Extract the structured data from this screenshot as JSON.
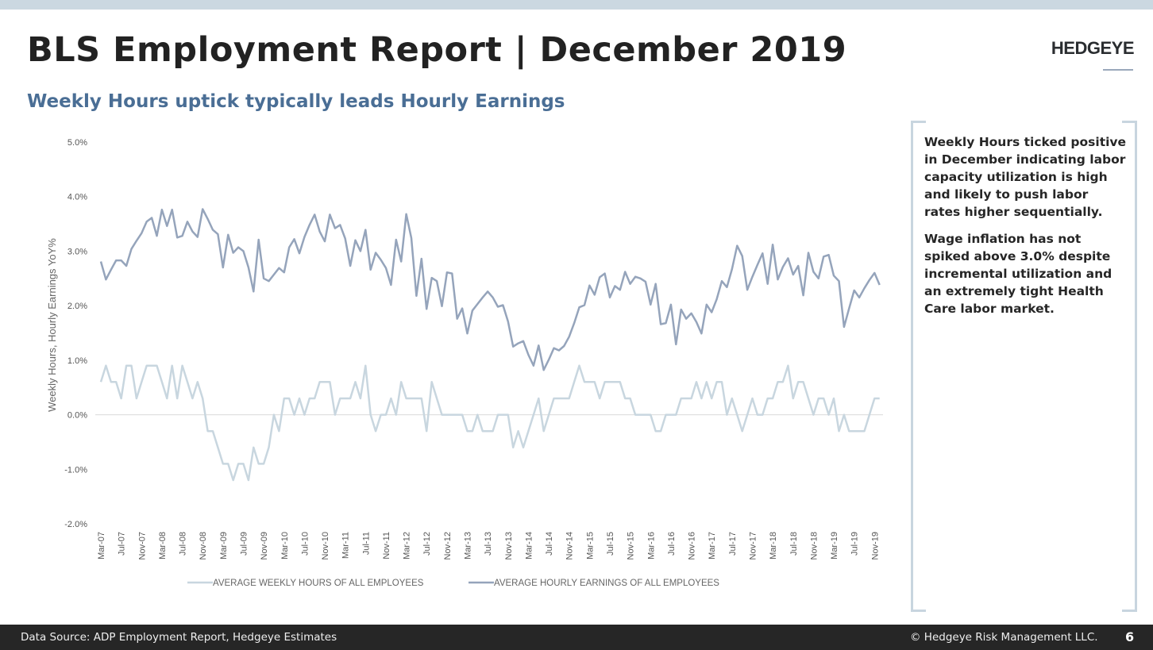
{
  "header": {
    "title": "BLS Employment Report | December 2019",
    "logo": "HEDGEYE",
    "subtitle": "Weekly Hours uptick typically leads Hourly Earnings"
  },
  "callout": {
    "paragraphs": [
      "Weekly Hours ticked positive in December indicating labor capacity utilization is high and likely to push labor rates higher sequentially.",
      "Wage inflation has not spiked above 3.0% despite incremental utilization and an extremely tight Health Care labor market."
    ]
  },
  "footer": {
    "source": "Data Source: ADP Employment Report, Hedgeye Estimates",
    "copyright": "© Hedgeye Risk Management LLC.",
    "page_number": "6"
  },
  "colors": {
    "hours": "#c8d6df",
    "earnings": "#95a4bb",
    "subtitle": "#4a6e95",
    "footer_bg": "#262626"
  },
  "chart_data": {
    "type": "line",
    "title": "",
    "xlabel": "",
    "ylabel": "Weekly Hours, Hourly Earnings YoY%",
    "ylim": [
      -2.0,
      5.0
    ],
    "y_ticks": [
      "5.0%",
      "4.0%",
      "3.0%",
      "2.0%",
      "1.0%",
      "0.0%",
      "-1.0%",
      "-2.0%"
    ],
    "x_ticks": [
      "Mar-07",
      "Jul-07",
      "Nov-07",
      "Mar-08",
      "Jul-08",
      "Nov-08",
      "Mar-09",
      "Jul-09",
      "Nov-09",
      "Mar-10",
      "Jul-10",
      "Nov-10",
      "Mar-11",
      "Jul-11",
      "Nov-11",
      "Mar-12",
      "Jul-12",
      "Nov-12",
      "Mar-13",
      "Jul-13",
      "Nov-13",
      "Mar-14",
      "Jul-14",
      "Nov-14",
      "Mar-15",
      "Jul-15",
      "Nov-15",
      "Mar-16",
      "Jul-16",
      "Nov-16",
      "Mar-17",
      "Jul-17",
      "Nov-17",
      "Mar-18",
      "Jul-18",
      "Nov-18",
      "Mar-19",
      "Jul-19",
      "Nov-19"
    ],
    "grid": false,
    "zero_line": true,
    "legend_position": "bottom",
    "x": [
      "Mar-07",
      "Apr-07",
      "May-07",
      "Jun-07",
      "Jul-07",
      "Aug-07",
      "Sep-07",
      "Oct-07",
      "Nov-07",
      "Dec-07",
      "Jan-08",
      "Feb-08",
      "Mar-08",
      "Apr-08",
      "May-08",
      "Jun-08",
      "Jul-08",
      "Aug-08",
      "Sep-08",
      "Oct-08",
      "Nov-08",
      "Dec-08",
      "Jan-09",
      "Feb-09",
      "Mar-09",
      "Apr-09",
      "May-09",
      "Jun-09",
      "Jul-09",
      "Aug-09",
      "Sep-09",
      "Oct-09",
      "Nov-09",
      "Dec-09",
      "Jan-10",
      "Feb-10",
      "Mar-10",
      "Apr-10",
      "May-10",
      "Jun-10",
      "Jul-10",
      "Aug-10",
      "Sep-10",
      "Oct-10",
      "Nov-10",
      "Dec-10",
      "Jan-11",
      "Feb-11",
      "Mar-11",
      "Apr-11",
      "May-11",
      "Jun-11",
      "Jul-11",
      "Aug-11",
      "Sep-11",
      "Oct-11",
      "Nov-11",
      "Dec-11",
      "Jan-12",
      "Feb-12",
      "Mar-12",
      "Apr-12",
      "May-12",
      "Jun-12",
      "Jul-12",
      "Aug-12",
      "Sep-12",
      "Oct-12",
      "Nov-12",
      "Dec-12",
      "Jan-13",
      "Feb-13",
      "Mar-13",
      "Apr-13",
      "May-13",
      "Jun-13",
      "Jul-13",
      "Aug-13",
      "Sep-13",
      "Oct-13",
      "Nov-13",
      "Dec-13",
      "Jan-14",
      "Feb-14",
      "Mar-14",
      "Apr-14",
      "May-14",
      "Jun-14",
      "Jul-14",
      "Aug-14",
      "Sep-14",
      "Oct-14",
      "Nov-14",
      "Dec-14",
      "Jan-15",
      "Feb-15",
      "Mar-15",
      "Apr-15",
      "May-15",
      "Jun-15",
      "Jul-15",
      "Aug-15",
      "Sep-15",
      "Oct-15",
      "Nov-15",
      "Dec-15",
      "Jan-16",
      "Feb-16",
      "Mar-16",
      "Apr-16",
      "May-16",
      "Jun-16",
      "Jul-16",
      "Aug-16",
      "Sep-16",
      "Oct-16",
      "Nov-16",
      "Dec-16",
      "Jan-17",
      "Feb-17",
      "Mar-17",
      "Apr-17",
      "May-17",
      "Jun-17",
      "Jul-17",
      "Aug-17",
      "Sep-17",
      "Oct-17",
      "Nov-17",
      "Dec-17",
      "Jan-18",
      "Feb-18",
      "Mar-18",
      "Apr-18",
      "May-18",
      "Jun-18",
      "Jul-18",
      "Aug-18",
      "Sep-18",
      "Oct-18",
      "Nov-18",
      "Dec-18",
      "Jan-19",
      "Feb-19",
      "Mar-19",
      "Apr-19",
      "May-19",
      "Jun-19",
      "Jul-19",
      "Aug-19",
      "Sep-19",
      "Oct-19",
      "Nov-19",
      "Dec-19"
    ],
    "series": [
      {
        "name": "AVERAGE WEEKLY HOURS OF ALL EMPLOYEES",
        "color": "#c8d6df",
        "values": [
          0.6,
          0.9,
          0.6,
          0.6,
          0.3,
          0.9,
          0.9,
          0.3,
          0.6,
          0.9,
          0.9,
          0.9,
          0.6,
          0.3,
          0.9,
          0.3,
          0.9,
          0.6,
          0.3,
          0.6,
          0.3,
          -0.3,
          -0.3,
          -0.6,
          -0.9,
          -0.9,
          -1.2,
          -0.9,
          -0.9,
          -1.2,
          -0.6,
          -0.9,
          -0.9,
          -0.6,
          0,
          -0.3,
          0.3,
          0.3,
          0,
          0.3,
          0,
          0.3,
          0.3,
          0.6,
          0.6,
          0.6,
          0,
          0.3,
          0.3,
          0.3,
          0.6,
          0.3,
          0.9,
          0,
          -0.3,
          0,
          0,
          0.3,
          0,
          0.6,
          0.3,
          0.3,
          0.3,
          0.3,
          -0.3,
          0.6,
          0.3,
          0,
          0,
          0,
          0,
          0,
          -0.3,
          -0.3,
          0,
          -0.3,
          -0.3,
          -0.3,
          0,
          0,
          0,
          -0.6,
          -0.3,
          -0.6,
          -0.3,
          0,
          0.3,
          -0.3,
          0,
          0.3,
          0.3,
          0.3,
          0.3,
          0.6,
          0.9,
          0.6,
          0.6,
          0.6,
          0.3,
          0.6,
          0.6,
          0.6,
          0.6,
          0.3,
          0.3,
          0,
          0,
          0,
          0,
          -0.3,
          -0.3,
          0,
          0,
          0,
          0.3,
          0.3,
          0.3,
          0.6,
          0.3,
          0.6,
          0.3,
          0.6,
          0.6,
          0,
          0.3,
          0,
          -0.3,
          0,
          0.3,
          0,
          0,
          0.3,
          0.3,
          0.6,
          0.6,
          0.9,
          0.3,
          0.6,
          0.6,
          0.3,
          0,
          0.3,
          0.3,
          0,
          0.3,
          -0.3,
          0,
          -0.3,
          -0.3,
          -0.3,
          -0.3,
          0,
          0.3,
          0.3
        ]
      },
      {
        "name": "AVERAGE HOURLY EARNINGS OF ALL EMPLOYEES",
        "color": "#95a4bb",
        "values": [
          2.81,
          2.48,
          2.66,
          2.83,
          2.83,
          2.73,
          3.04,
          3.19,
          3.33,
          3.54,
          3.61,
          3.28,
          3.76,
          3.46,
          3.76,
          3.25,
          3.28,
          3.54,
          3.36,
          3.26,
          3.77,
          3.59,
          3.39,
          3.31,
          2.7,
          3.3,
          2.97,
          3.07,
          3.0,
          2.7,
          2.26,
          3.21,
          2.5,
          2.45,
          2.57,
          2.69,
          2.61,
          3.07,
          3.22,
          2.96,
          3.26,
          3.48,
          3.67,
          3.36,
          3.18,
          3.67,
          3.42,
          3.48,
          3.23,
          2.73,
          3.2,
          3.0,
          3.39,
          2.66,
          2.97,
          2.84,
          2.69,
          2.38,
          3.21,
          2.81,
          3.68,
          3.24,
          2.18,
          2.86,
          1.94,
          2.51,
          2.45,
          1.99,
          2.61,
          2.59,
          1.76,
          1.95,
          1.49,
          1.91,
          2.03,
          2.15,
          2.26,
          2.15,
          1.98,
          2.01,
          1.71,
          1.25,
          1.31,
          1.35,
          1.1,
          0.9,
          1.27,
          0.82,
          1.01,
          1.22,
          1.18,
          1.26,
          1.43,
          1.68,
          1.97,
          2.01,
          2.37,
          2.2,
          2.52,
          2.59,
          2.15,
          2.36,
          2.29,
          2.62,
          2.4,
          2.53,
          2.5,
          2.44,
          2.02,
          2.4,
          1.66,
          1.68,
          2.02,
          1.29,
          1.93,
          1.76,
          1.86,
          1.7,
          1.49,
          2.02,
          1.88,
          2.12,
          2.45,
          2.34,
          2.67,
          3.1,
          2.91,
          2.29,
          2.53,
          2.75,
          2.96,
          2.4,
          3.12,
          2.48,
          2.71,
          2.87,
          2.57,
          2.73,
          2.19,
          2.97,
          2.62,
          2.5,
          2.9,
          2.93,
          2.55,
          2.45,
          1.61,
          1.95,
          2.28,
          2.15,
          2.32,
          2.47,
          2.6,
          2.38
        ]
      }
    ]
  }
}
